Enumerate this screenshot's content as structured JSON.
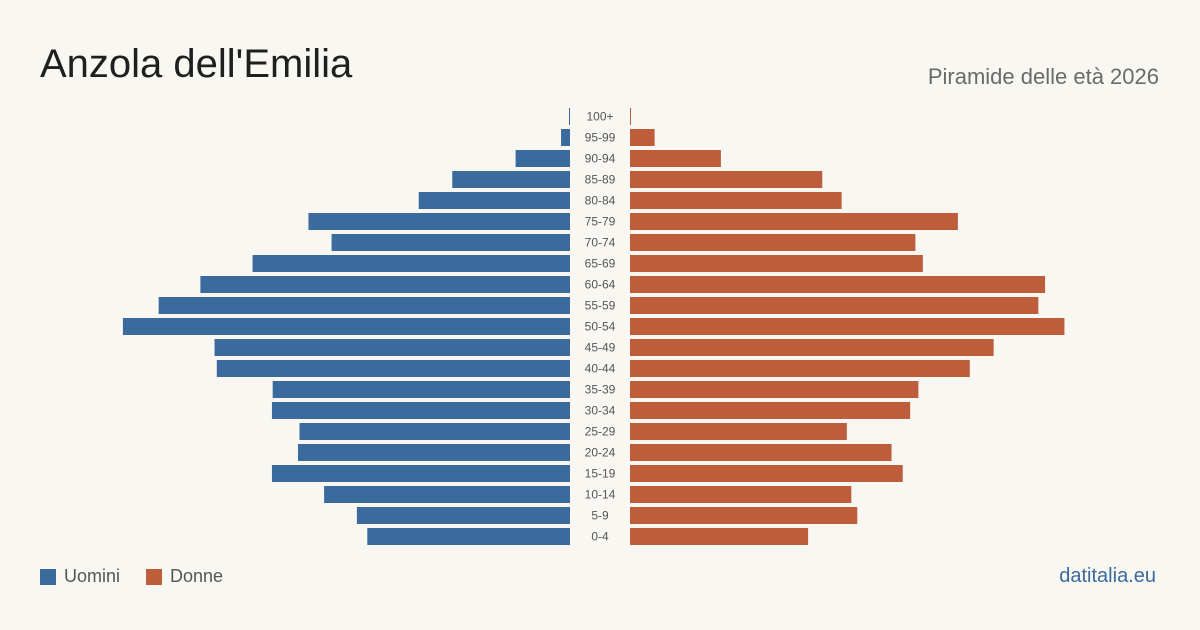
{
  "header": {
    "title": "Anzola dell'Emilia",
    "subtitle": "Piramide delle età 2026"
  },
  "legend": {
    "male_label": "Uomini",
    "female_label": "Donne"
  },
  "brand": "datitalia.eu",
  "colors": {
    "male": "#3b6a9c",
    "female": "#bd5d3c",
    "background": "#f9f7f2"
  },
  "chart_data": {
    "type": "bar",
    "orientation": "horizontal-pyramid",
    "categories": [
      "100+",
      "95-99",
      "90-94",
      "85-89",
      "80-84",
      "75-79",
      "70-74",
      "65-69",
      "60-64",
      "55-59",
      "50-54",
      "45-49",
      "40-44",
      "35-39",
      "30-34",
      "25-29",
      "20-24",
      "15-19",
      "10-14",
      "5-9",
      "0-4"
    ],
    "series": [
      {
        "name": "Uomini",
        "values": [
          1,
          12,
          73,
          158,
          203,
          351,
          320,
          426,
          496,
          552,
          600,
          477,
          474,
          399,
          400,
          363,
          365,
          400,
          330,
          286,
          272
        ]
      },
      {
        "name": "Donne",
        "values": [
          1,
          33,
          122,
          258,
          284,
          440,
          383,
          393,
          557,
          548,
          583,
          488,
          456,
          387,
          376,
          291,
          351,
          366,
          297,
          305,
          239
        ]
      }
    ],
    "xlim": [
      0,
      620
    ],
    "grid": false,
    "legend_position": "bottom-left"
  }
}
